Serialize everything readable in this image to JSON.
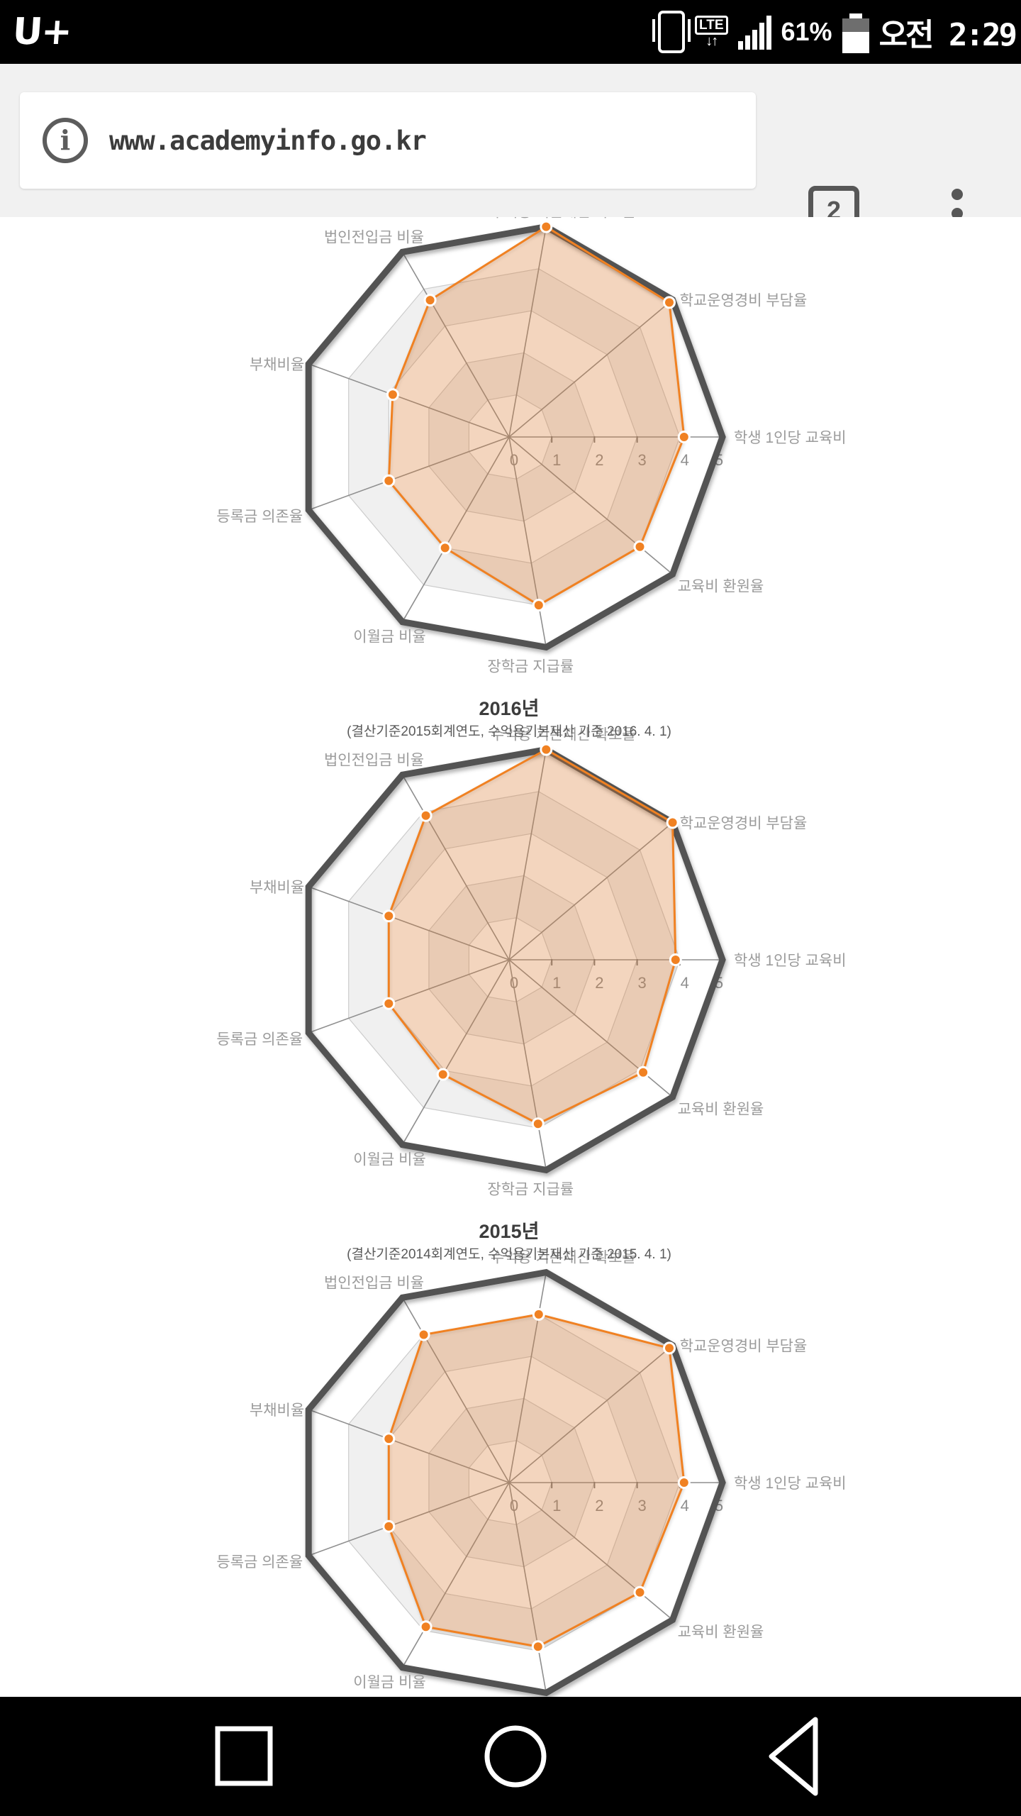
{
  "status_bar": {
    "carrier_logo": "U+",
    "network_label": "LTE",
    "network_arrows": "↓↑",
    "battery_percent": "61%",
    "time": "오전 2:29",
    "signal_bar_heights": [
      12,
      20,
      28,
      38,
      48
    ]
  },
  "browser": {
    "url": "www.academyinfo.go.kr",
    "info_icon_glyph": "i",
    "tab_count": "2"
  },
  "nav_bar": {
    "buttons": [
      "recents",
      "home",
      "back"
    ]
  },
  "colors": {
    "accent_orange": "#f08122",
    "orange_fill": "rgba(244,138,54,0.28)",
    "outer_border": "#535353",
    "grid_line": "#cccccc",
    "band_gray": "#f0f0f0",
    "band_white": "#ffffff",
    "spoke": "#8f8f8f",
    "axis_label": "#9b9b9b",
    "tick_label": "#8f8f8f",
    "title": "#3c3c3c",
    "subtitle": "#5a5a5a"
  },
  "chart_data": {
    "type": "radar",
    "legend": "none",
    "grid": true,
    "scale": {
      "min": 0,
      "max": 5
    },
    "tick_labels": [
      "0",
      "1",
      "2",
      "3",
      "4",
      "5"
    ],
    "categories": [
      "수익용 기본재산 확보율",
      "학교운영경비 부담율",
      "학생 1인당 교육비",
      "교육비 환원율",
      "장학금 지급률",
      "이월금 비율",
      "등록금 의존율",
      "부채비율",
      "법인전입금 비율"
    ],
    "charts": [
      {
        "title": "",
        "subtitle": "",
        "values": [
          5.0,
          4.9,
          4.1,
          4.0,
          4.0,
          3.0,
          3.0,
          2.9,
          3.7
        ]
      },
      {
        "title": "2016년",
        "subtitle": "(결산기준2015회계연도, 수익용기본재산 기준 2016. 4. 1)",
        "values": [
          5.0,
          5.0,
          3.9,
          4.1,
          3.9,
          3.1,
          3.0,
          3.0,
          3.9
        ]
      },
      {
        "title": "2015년",
        "subtitle": "(결산기준2014회계연도, 수익용기본재산 기준 2015. 4. 1)",
        "values": [
          4.0,
          4.9,
          4.1,
          4.0,
          3.9,
          3.9,
          3.0,
          3.0,
          4.0
        ]
      }
    ]
  }
}
